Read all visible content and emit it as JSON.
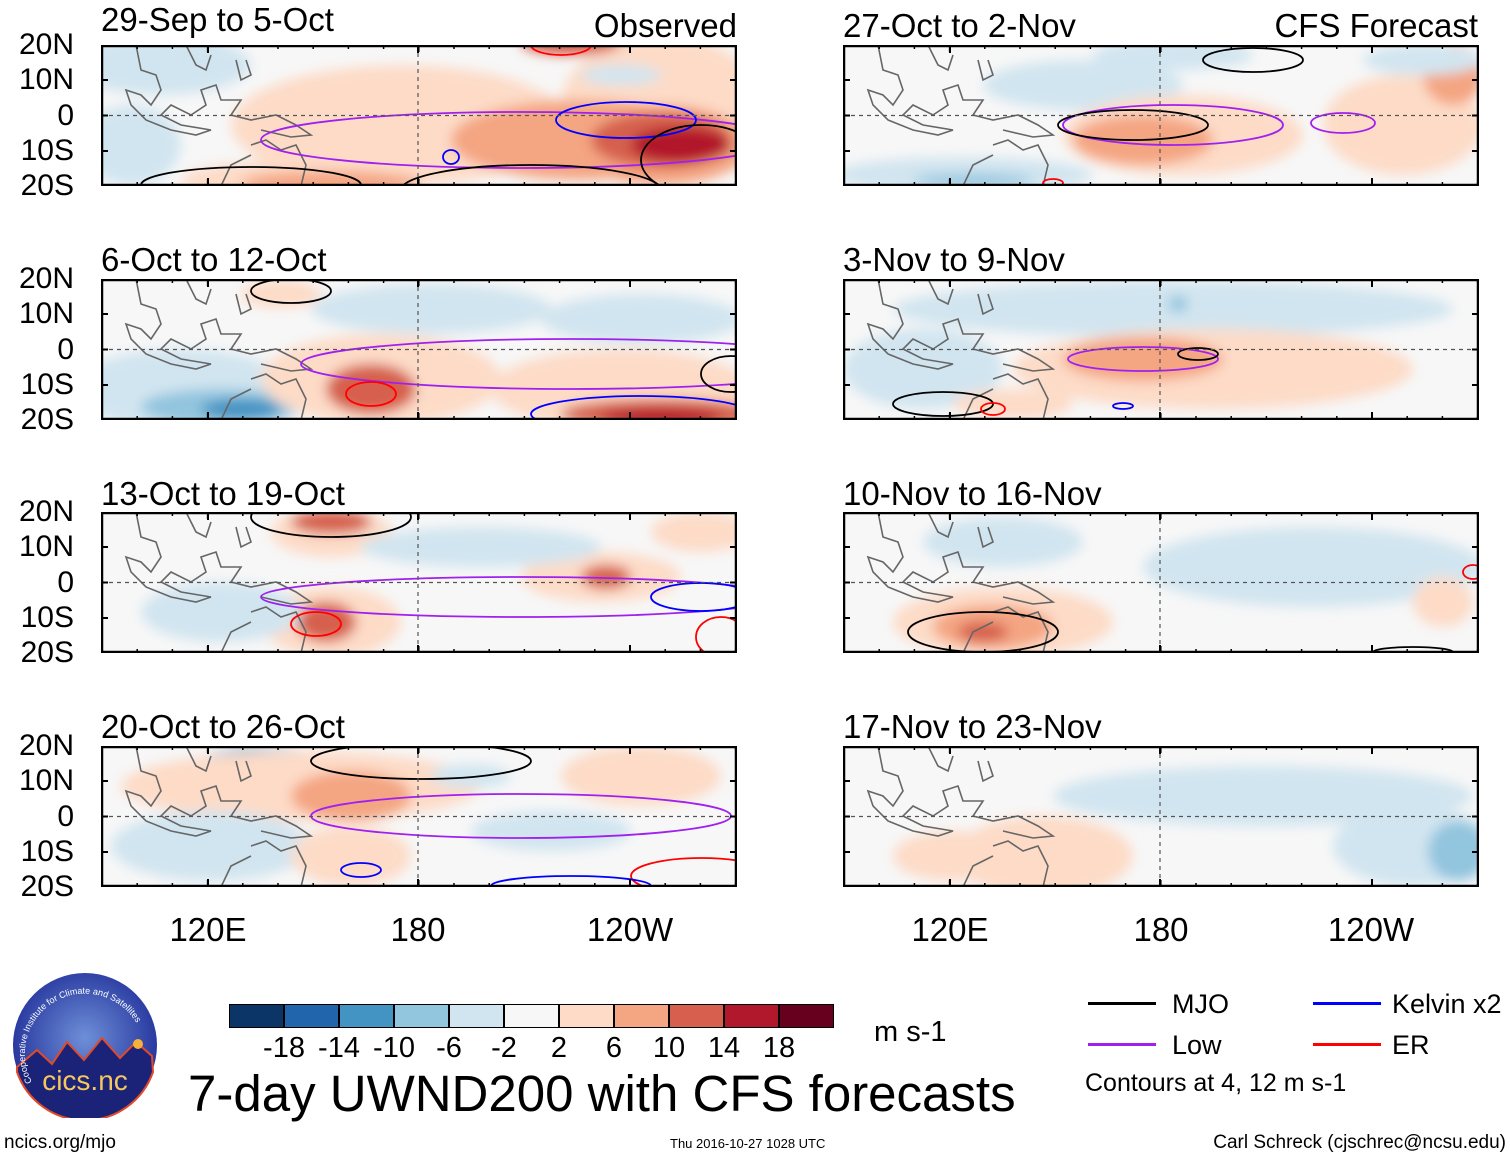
{
  "figure": {
    "title": "7-day UWND200 with CFS forecasts",
    "units": "m s-1",
    "url": "ncics.org/mjo",
    "timestamp": "Thu 2016-10-27 1028 UTC",
    "author": "Carl Schreck (cjschrec@ncsu.edu)",
    "logo_text": "cics.nc",
    "logo_ring_text": "Cooperative Institute for Climate and Satellites"
  },
  "columns": {
    "left": "Observed",
    "right": "CFS Forecast"
  },
  "panels": [
    {
      "title": "29-Sep to 5-Oct"
    },
    {
      "title": "6-Oct to 12-Oct"
    },
    {
      "title": "13-Oct to 19-Oct"
    },
    {
      "title": "20-Oct to 26-Oct"
    },
    {
      "title": "27-Oct to 2-Nov"
    },
    {
      "title": "3-Nov to 9-Nov"
    },
    {
      "title": "10-Nov to 16-Nov"
    },
    {
      "title": "17-Nov to 23-Nov"
    }
  ],
  "lat_labels": [
    "20N",
    "10N",
    "0",
    "10S",
    "20S"
  ],
  "lon_labels": [
    "120E",
    "180",
    "120W"
  ],
  "colorbar": {
    "labels": [
      "-18",
      "-14",
      "-10",
      "-6",
      "-2",
      "2",
      "6",
      "10",
      "14",
      "18"
    ],
    "colors": [
      "#0b3467",
      "#2166ac",
      "#4393c3",
      "#92c5de",
      "#d1e5f0",
      "#f7f7f7",
      "#fddbc7",
      "#f4a582",
      "#d6604d",
      "#b2182b",
      "#67001f"
    ]
  },
  "legend": {
    "items": [
      {
        "label": "MJO",
        "color": "#000000"
      },
      {
        "label": "Kelvin x2",
        "color": "#0000ff"
      },
      {
        "label": "Low",
        "color": "#a020f0"
      },
      {
        "label": "ER",
        "color": "#ff0000"
      }
    ],
    "note": "Contours at 4, 12 m s-1"
  }
}
